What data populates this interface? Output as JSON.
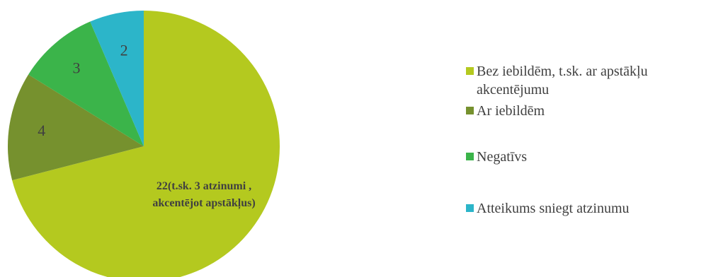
{
  "chart_data": {
    "type": "pie",
    "categories": [
      "Bez iebildēm, t.sk. ar apstākļu akcentējumu",
      "Ar iebildēm",
      "Negatīvs",
      "Atteikums sniegt atzinumu"
    ],
    "values": [
      22,
      4,
      3,
      2
    ],
    "data_labels": [
      [
        "22(t.sk. 3 atzinumi ,",
        "akcentējot apstākļus)"
      ],
      [
        "4"
      ],
      [
        "3"
      ],
      [
        "2"
      ]
    ],
    "colors": [
      "#b4c91f",
      "#76912e",
      "#3bb44a",
      "#2cb5c9"
    ],
    "legend_position": "right",
    "start_angle_deg": 0,
    "direction": "clockwise"
  }
}
